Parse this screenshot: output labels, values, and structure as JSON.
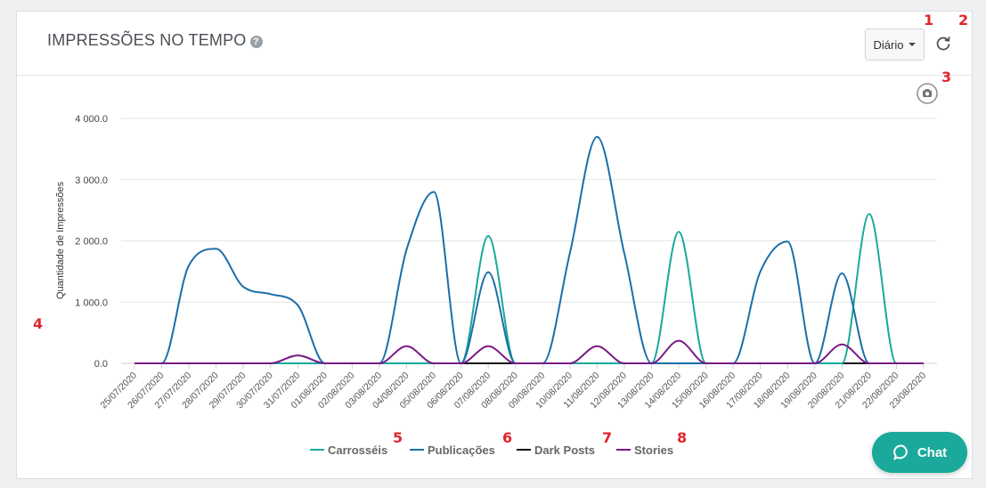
{
  "header": {
    "title": "IMPRESSÕES NO TEMPO",
    "help_glyph": "?",
    "period_label": "Diário"
  },
  "annotations": [
    "1",
    "2",
    "3",
    "4",
    "5",
    "6",
    "7",
    "8"
  ],
  "chat": {
    "label": "Chat"
  },
  "chart_data": {
    "type": "line",
    "title": "",
    "xlabel": "",
    "ylabel": "Quantidade de Impressões",
    "ylim": [
      0,
      4200
    ],
    "yticks": [
      "0.0",
      "1 000.0",
      "2 000.0",
      "3 000.0",
      "4 000.0"
    ],
    "grid": true,
    "legend_position": "bottom",
    "categories": [
      "25/07/2020",
      "26/07/2020",
      "27/07/2020",
      "28/07/2020",
      "29/07/2020",
      "30/07/2020",
      "31/07/2020",
      "01/08/2020",
      "02/08/2020",
      "03/08/2020",
      "04/08/2020",
      "05/08/2020",
      "06/08/2020",
      "07/08/2020",
      "08/08/2020",
      "09/08/2020",
      "10/08/2020",
      "11/08/2020",
      "12/08/2020",
      "13/08/2020",
      "14/08/2020",
      "15/08/2020",
      "16/08/2020",
      "17/08/2020",
      "18/08/2020",
      "19/08/2020",
      "20/08/2020",
      "21/08/2020",
      "22/08/2020",
      "23/08/2020"
    ],
    "series": [
      {
        "name": "Carrosséis",
        "color": "#1aa99a",
        "values": [
          0,
          0,
          0,
          0,
          0,
          0,
          0,
          0,
          0,
          0,
          0,
          0,
          0,
          2080,
          0,
          0,
          0,
          0,
          0,
          0,
          2150,
          0,
          0,
          0,
          0,
          0,
          0,
          2440,
          0,
          0
        ]
      },
      {
        "name": "Publicações",
        "color": "#1a6ea8",
        "values": [
          0,
          0,
          1600,
          1870,
          1250,
          1130,
          950,
          0,
          0,
          0,
          1860,
          2800,
          0,
          1490,
          0,
          0,
          1800,
          3700,
          1800,
          0,
          0,
          0,
          0,
          1500,
          1990,
          0,
          1470,
          0,
          0,
          0
        ]
      },
      {
        "name": "Dark Posts",
        "color": "#111111",
        "values": [
          0,
          0,
          0,
          0,
          0,
          0,
          0,
          0,
          0,
          0,
          0,
          0,
          0,
          0,
          0,
          0,
          0,
          0,
          0,
          0,
          0,
          0,
          0,
          0,
          0,
          0,
          0,
          0,
          0,
          0
        ]
      },
      {
        "name": "Stories",
        "color": "#7a1a86",
        "values": [
          0,
          0,
          0,
          0,
          0,
          0,
          130,
          0,
          0,
          0,
          280,
          0,
          0,
          280,
          0,
          0,
          0,
          280,
          0,
          0,
          370,
          0,
          0,
          0,
          0,
          0,
          310,
          0,
          0,
          0
        ]
      }
    ]
  }
}
